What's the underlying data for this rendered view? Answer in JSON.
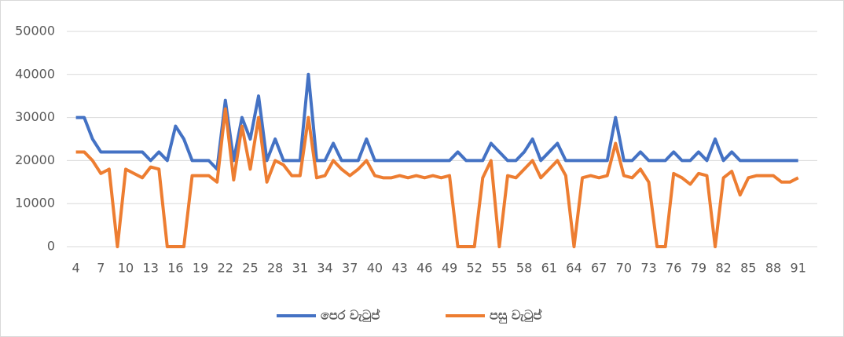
{
  "chart_data": {
    "type": "line",
    "x": [
      4,
      5,
      6,
      7,
      8,
      9,
      10,
      11,
      12,
      13,
      14,
      15,
      16,
      17,
      18,
      19,
      20,
      21,
      22,
      23,
      24,
      25,
      26,
      27,
      28,
      29,
      30,
      31,
      32,
      33,
      34,
      35,
      36,
      37,
      38,
      39,
      40,
      41,
      42,
      43,
      44,
      45,
      46,
      47,
      48,
      49,
      50,
      51,
      52,
      53,
      54,
      55,
      56,
      57,
      58,
      59,
      60,
      61,
      62,
      63,
      64,
      65,
      66,
      67,
      68,
      69,
      70,
      71,
      72,
      73,
      74,
      75,
      76,
      77,
      78,
      79,
      80,
      81,
      82,
      83,
      84,
      85,
      86,
      87,
      88,
      89,
      90,
      91
    ],
    "series": [
      {
        "name": "පෙර වැටුප්",
        "color": "#4472c4",
        "values": [
          30000,
          30000,
          25000,
          22000,
          22000,
          22000,
          22000,
          22000,
          22000,
          20000,
          22000,
          20000,
          28000,
          25000,
          20000,
          20000,
          20000,
          18000,
          34000,
          20000,
          30000,
          25000,
          35000,
          20000,
          25000,
          20000,
          20000,
          20000,
          40000,
          20000,
          20000,
          24000,
          20000,
          20000,
          20000,
          25000,
          20000,
          20000,
          20000,
          20000,
          20000,
          20000,
          20000,
          20000,
          20000,
          20000,
          22000,
          20000,
          20000,
          20000,
          24000,
          22000,
          20000,
          20000,
          22000,
          25000,
          20000,
          22000,
          24000,
          20000,
          20000,
          20000,
          20000,
          20000,
          20000,
          30000,
          20000,
          20000,
          22000,
          20000,
          20000,
          20000,
          22000,
          20000,
          20000,
          22000,
          20000,
          25000,
          20000,
          22000,
          20000,
          20000,
          20000,
          20000,
          20000,
          20000,
          20000,
          20000
        ]
      },
      {
        "name": "පසු වැටුප්",
        "color": "#ed7d31",
        "values": [
          22000,
          22000,
          20000,
          17000,
          18000,
          0,
          18000,
          17000,
          16000,
          18500,
          18000,
          0,
          0,
          0,
          16500,
          16500,
          16500,
          15000,
          32000,
          15500,
          28000,
          18000,
          30000,
          15000,
          20000,
          19000,
          16500,
          16500,
          30000,
          16000,
          16500,
          20000,
          18000,
          16500,
          18000,
          20000,
          16500,
          16000,
          16000,
          16500,
          16000,
          16500,
          16000,
          16500,
          16000,
          16500,
          0,
          0,
          0,
          16000,
          20000,
          0,
          16500,
          16000,
          18000,
          20000,
          16000,
          18000,
          20000,
          16500,
          0,
          16000,
          16500,
          16000,
          16500,
          24000,
          16500,
          16000,
          18000,
          15000,
          0,
          0,
          17000,
          16000,
          14500,
          17000,
          16500,
          0,
          16000,
          17500,
          12000,
          16000,
          16500,
          16500,
          16500,
          15000,
          15000,
          16000
        ]
      }
    ],
    "xlim": [
      2.9,
      93.3
    ],
    "xticks": [
      4,
      7,
      10,
      13,
      16,
      19,
      22,
      25,
      28,
      31,
      34,
      37,
      40,
      43,
      46,
      49,
      52,
      55,
      58,
      61,
      64,
      67,
      70,
      73,
      76,
      79,
      82,
      85,
      88,
      91
    ],
    "ylim": [
      0,
      50000
    ],
    "yticks": [
      0,
      10000,
      20000,
      30000,
      40000,
      50000
    ],
    "grid": true,
    "legend": "bottom"
  }
}
